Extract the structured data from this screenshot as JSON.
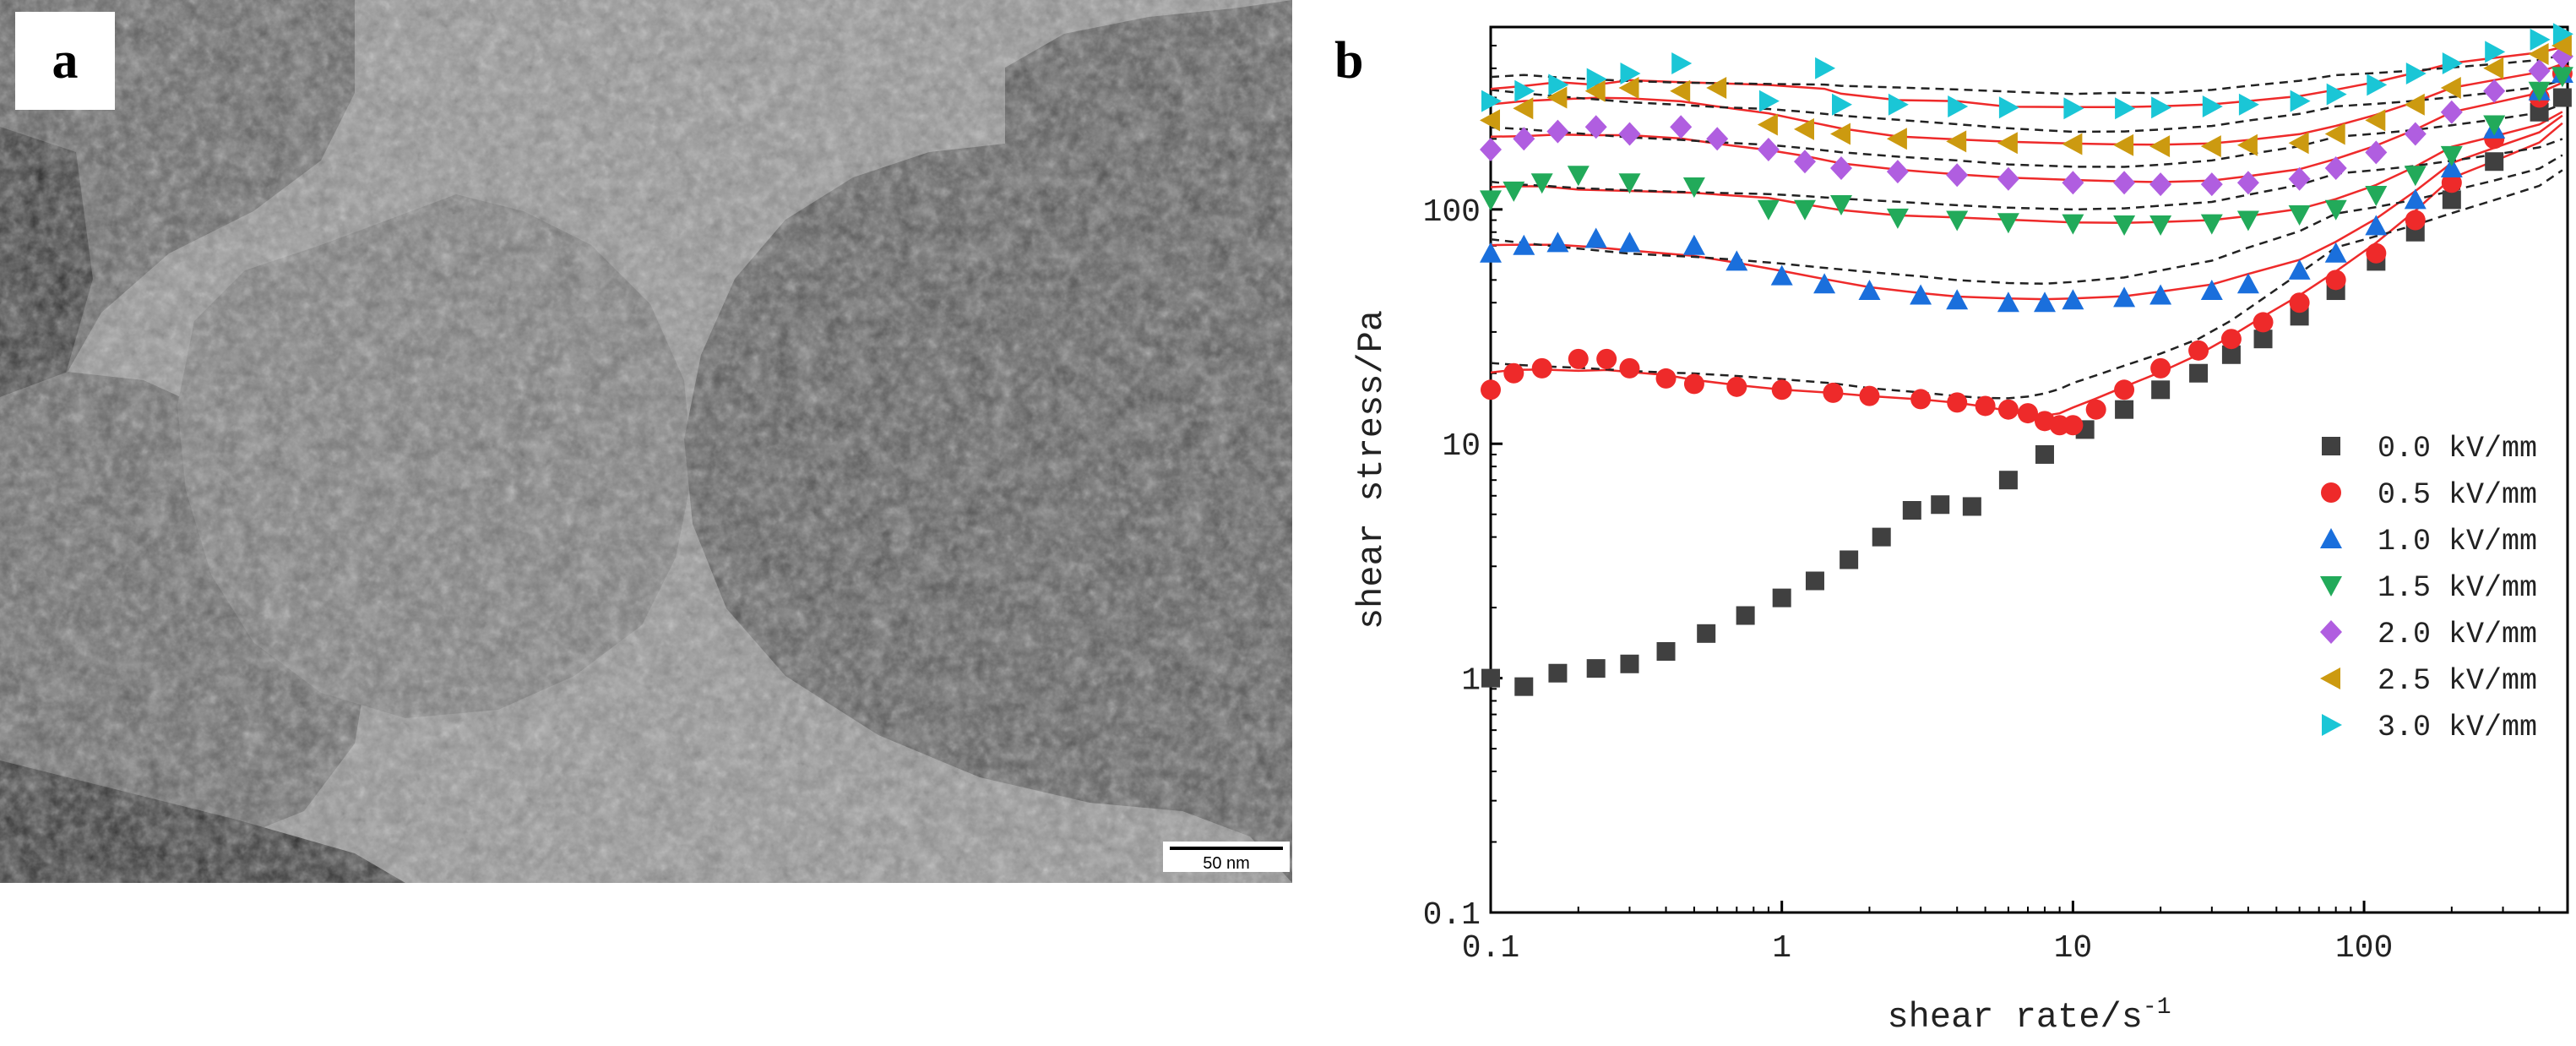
{
  "panels": {
    "a": {
      "letter": "a",
      "scale_bar": "50 nm"
    },
    "b": {
      "letter": "b"
    }
  },
  "chart_data": {
    "type": "scatter",
    "xlabel": "shear rate/s",
    "xlabel_sup": "-1",
    "ylabel": "shear stress/Pa",
    "x_scale": "log",
    "y_scale": "log",
    "xlim": [
      0.1,
      500
    ],
    "ylim": [
      0.1,
      600
    ],
    "x_ticks": [
      0.1,
      1,
      10,
      100
    ],
    "x_tick_labels": [
      "0.1",
      "1",
      "10",
      "100"
    ],
    "y_ticks": [
      0.1,
      1,
      10,
      100
    ],
    "y_tick_labels": [
      "0.1",
      "1",
      "10",
      "100"
    ],
    "legend_position": "lower-right",
    "series": [
      {
        "name": "0.0 kV/mm",
        "color": "#404040",
        "marker": "square",
        "points": [
          [
            0.1,
            1.0
          ],
          [
            0.13,
            0.92
          ],
          [
            0.17,
            1.05
          ],
          [
            0.23,
            1.1
          ],
          [
            0.3,
            1.15
          ],
          [
            0.4,
            1.3
          ],
          [
            0.55,
            1.55
          ],
          [
            0.75,
            1.85
          ],
          [
            1.0,
            2.2
          ],
          [
            1.3,
            2.6
          ],
          [
            1.7,
            3.2
          ],
          [
            2.2,
            4.0
          ],
          [
            2.8,
            5.2
          ],
          [
            3.5,
            5.5
          ],
          [
            4.5,
            5.4
          ],
          [
            6,
            7
          ],
          [
            8,
            9
          ],
          [
            11,
            11.5
          ],
          [
            15,
            14
          ],
          [
            20,
            17
          ],
          [
            27,
            20
          ],
          [
            35,
            24
          ],
          [
            45,
            28
          ],
          [
            60,
            35
          ],
          [
            80,
            45
          ],
          [
            110,
            60
          ],
          [
            150,
            80
          ],
          [
            200,
            110
          ],
          [
            280,
            160
          ],
          [
            400,
            260
          ],
          [
            480,
            300
          ]
        ]
      },
      {
        "name": "0.5 kV/mm",
        "color": "#ee2a2a",
        "marker": "circle",
        "points": [
          [
            0.1,
            17
          ],
          [
            0.12,
            20
          ],
          [
            0.15,
            21
          ],
          [
            0.2,
            23
          ],
          [
            0.25,
            23
          ],
          [
            0.3,
            21
          ],
          [
            0.4,
            19
          ],
          [
            0.5,
            18
          ],
          [
            0.7,
            17.5
          ],
          [
            1,
            17
          ],
          [
            1.5,
            16.5
          ],
          [
            2,
            16
          ],
          [
            3,
            15.5
          ],
          [
            4,
            15
          ],
          [
            5,
            14.5
          ],
          [
            6,
            14
          ],
          [
            7,
            13.5
          ],
          [
            8,
            12.5
          ],
          [
            9,
            12
          ],
          [
            10,
            12
          ],
          [
            12,
            14
          ],
          [
            15,
            17
          ],
          [
            20,
            21
          ],
          [
            27,
            25
          ],
          [
            35,
            28
          ],
          [
            45,
            33
          ],
          [
            60,
            40
          ],
          [
            80,
            50
          ],
          [
            110,
            65
          ],
          [
            150,
            90
          ],
          [
            200,
            130
          ],
          [
            280,
            200
          ],
          [
            400,
            300
          ],
          [
            480,
            380
          ]
        ]
      },
      {
        "name": "1.0 kV/mm",
        "color": "#1a6fdc",
        "marker": "triangle-up",
        "points": [
          [
            0.1,
            65
          ],
          [
            0.13,
            70
          ],
          [
            0.17,
            72
          ],
          [
            0.23,
            75
          ],
          [
            0.3,
            72
          ],
          [
            0.5,
            70
          ],
          [
            0.7,
            60
          ],
          [
            1,
            52
          ],
          [
            1.4,
            48
          ],
          [
            2,
            45
          ],
          [
            3,
            43
          ],
          [
            4,
            41
          ],
          [
            6,
            40
          ],
          [
            8,
            40
          ],
          [
            10,
            41
          ],
          [
            15,
            42
          ],
          [
            20,
            43
          ],
          [
            30,
            45
          ],
          [
            40,
            48
          ],
          [
            60,
            55
          ],
          [
            80,
            65
          ],
          [
            110,
            85
          ],
          [
            150,
            110
          ],
          [
            200,
            150
          ],
          [
            280,
            220
          ],
          [
            400,
            320
          ],
          [
            480,
            380
          ]
        ]
      },
      {
        "name": "1.5 kV/mm",
        "color": "#22aa5a",
        "marker": "triangle-down",
        "points": [
          [
            0.1,
            110
          ],
          [
            0.12,
            120
          ],
          [
            0.15,
            130
          ],
          [
            0.2,
            140
          ],
          [
            0.3,
            130
          ],
          [
            0.5,
            125
          ],
          [
            0.9,
            100
          ],
          [
            1.2,
            100
          ],
          [
            1.6,
            105
          ],
          [
            2.5,
            92
          ],
          [
            4,
            90
          ],
          [
            6,
            88
          ],
          [
            10,
            87
          ],
          [
            15,
            86
          ],
          [
            20,
            86
          ],
          [
            30,
            87
          ],
          [
            40,
            90
          ],
          [
            60,
            95
          ],
          [
            80,
            100
          ],
          [
            110,
            115
          ],
          [
            150,
            140
          ],
          [
            200,
            170
          ],
          [
            280,
            230
          ],
          [
            400,
            320
          ],
          [
            480,
            370
          ]
        ]
      },
      {
        "name": "2.0 kV/mm",
        "color": "#b05ee0",
        "marker": "diamond",
        "points": [
          [
            0.1,
            180
          ],
          [
            0.13,
            200
          ],
          [
            0.17,
            215
          ],
          [
            0.23,
            225
          ],
          [
            0.3,
            210
          ],
          [
            0.45,
            225
          ],
          [
            0.6,
            200
          ],
          [
            0.9,
            180
          ],
          [
            1.2,
            160
          ],
          [
            1.6,
            150
          ],
          [
            2.5,
            145
          ],
          [
            4,
            140
          ],
          [
            6,
            135
          ],
          [
            10,
            130
          ],
          [
            15,
            130
          ],
          [
            20,
            128
          ],
          [
            30,
            128
          ],
          [
            40,
            130
          ],
          [
            60,
            135
          ],
          [
            80,
            150
          ],
          [
            110,
            175
          ],
          [
            150,
            210
          ],
          [
            200,
            260
          ],
          [
            280,
            320
          ],
          [
            400,
            390
          ],
          [
            480,
            450
          ]
        ]
      },
      {
        "name": "2.5 kV/mm",
        "color": "#cc9a10",
        "marker": "triangle-left",
        "points": [
          [
            0.1,
            240
          ],
          [
            0.13,
            270
          ],
          [
            0.17,
            300
          ],
          [
            0.23,
            320
          ],
          [
            0.3,
            330
          ],
          [
            0.45,
            320
          ],
          [
            0.6,
            330
          ],
          [
            0.9,
            230
          ],
          [
            1.2,
            220
          ],
          [
            1.6,
            210
          ],
          [
            2.5,
            200
          ],
          [
            4,
            195
          ],
          [
            6,
            192
          ],
          [
            10,
            190
          ],
          [
            15,
            188
          ],
          [
            20,
            186
          ],
          [
            30,
            186
          ],
          [
            40,
            188
          ],
          [
            60,
            192
          ],
          [
            80,
            210
          ],
          [
            110,
            240
          ],
          [
            150,
            280
          ],
          [
            200,
            330
          ],
          [
            280,
            400
          ],
          [
            400,
            460
          ],
          [
            480,
            500
          ]
        ]
      },
      {
        "name": "3.0 kV/mm",
        "color": "#1ac6d6",
        "marker": "triangle-right",
        "points": [
          [
            0.1,
            290
          ],
          [
            0.13,
            320
          ],
          [
            0.17,
            340
          ],
          [
            0.23,
            360
          ],
          [
            0.3,
            380
          ],
          [
            0.45,
            420
          ],
          [
            0.9,
            290
          ],
          [
            1.4,
            400
          ],
          [
            1.6,
            280
          ],
          [
            2.5,
            280
          ],
          [
            4,
            275
          ],
          [
            6,
            272
          ],
          [
            10,
            270
          ],
          [
            15,
            270
          ],
          [
            20,
            272
          ],
          [
            30,
            275
          ],
          [
            40,
            280
          ],
          [
            60,
            290
          ],
          [
            80,
            310
          ],
          [
            110,
            340
          ],
          [
            150,
            380
          ],
          [
            200,
            420
          ],
          [
            280,
            470
          ],
          [
            400,
            530
          ],
          [
            480,
            560
          ]
        ]
      }
    ]
  }
}
